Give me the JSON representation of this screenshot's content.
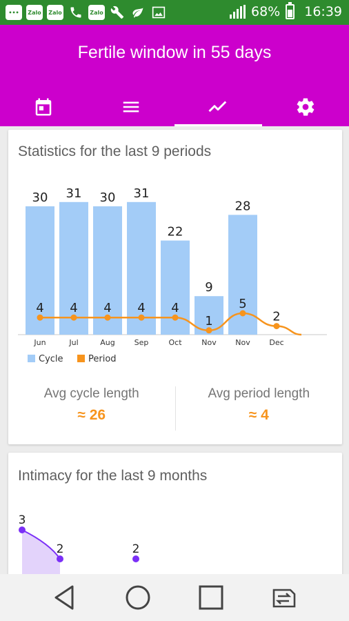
{
  "status_bar": {
    "battery": "68%",
    "time": "16:39",
    "notification_icons": [
      "chat-icon",
      "zalo-icon",
      "zalo-icon",
      "phone-call-icon",
      "zalo-icon",
      "wrench-icon",
      "leaf-icon",
      "image-icon"
    ],
    "zalo_label": "Zalo"
  },
  "app_bar": {
    "title": "Fertile window in 55 days",
    "color": "#cc00cc",
    "tabs": [
      {
        "name": "calendar",
        "icon": "calendar-icon"
      },
      {
        "name": "list",
        "icon": "list-icon"
      },
      {
        "name": "chart",
        "icon": "trend-chart-icon",
        "active": true
      },
      {
        "name": "settings",
        "icon": "gear-icon"
      }
    ]
  },
  "stats_card": {
    "title": "Statistics for the last 9 periods",
    "avg_cycle_label": "Avg cycle length",
    "avg_cycle_value": "≈ 26",
    "avg_period_label": "Avg period length",
    "avg_period_value": "≈ 4"
  },
  "intimacy_card": {
    "title": "Intimacy for the last 9 months"
  },
  "chart_data": [
    {
      "type": "bar",
      "categories": [
        "Jun",
        "Jul",
        "Aug",
        "Sep",
        "Oct",
        "Nov",
        "Nov",
        "Dec"
      ],
      "series": [
        {
          "name": "Cycle",
          "type": "bar",
          "color": "#a3ccf7",
          "values": [
            30,
            31,
            30,
            31,
            22,
            9,
            28,
            null
          ]
        },
        {
          "name": "Period",
          "type": "line",
          "color": "#f7941d",
          "values": [
            4,
            4,
            4,
            4,
            4,
            1,
            5,
            2
          ]
        }
      ],
      "legend": "bottom-left",
      "grid": false
    },
    {
      "type": "area",
      "values": [
        3,
        2,
        null,
        2
      ],
      "color": "#7b2ff7"
    }
  ],
  "nav_bar": {
    "buttons": [
      "back-icon",
      "home-icon",
      "recents-icon",
      "switch-sim-icon"
    ]
  }
}
